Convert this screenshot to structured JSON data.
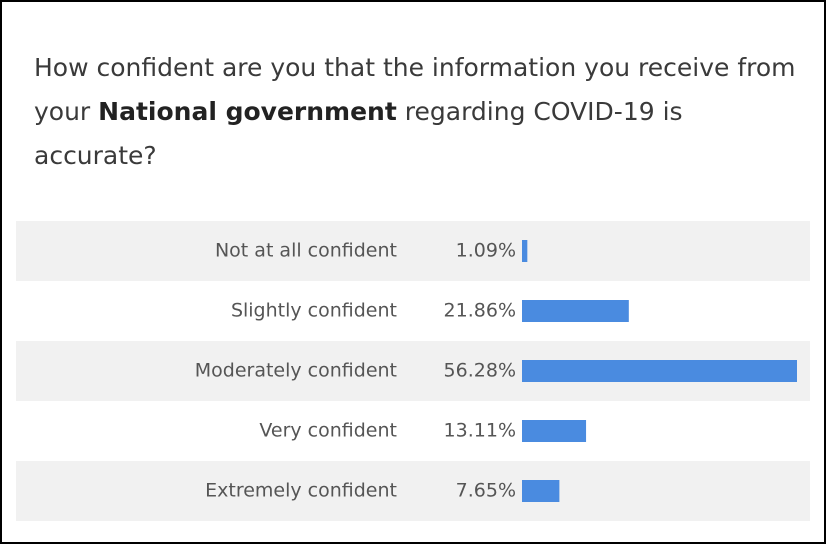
{
  "chart_data": {
    "type": "bar",
    "orientation": "horizontal",
    "title": [
      "How confident are you that the information you receive from your",
      "National government",
      "regarding COVID-19 is accurate?"
    ],
    "categories": [
      "Not at all confident",
      "Slightly confident",
      "Moderately confident",
      "Very confident",
      "Extremely confident"
    ],
    "values": [
      1.09,
      21.86,
      56.28,
      13.11,
      7.65
    ],
    "value_labels": [
      "1.09%",
      "21.86%",
      "56.28%",
      "13.11%",
      "7.65%"
    ],
    "color": "#4a8be0"
  }
}
